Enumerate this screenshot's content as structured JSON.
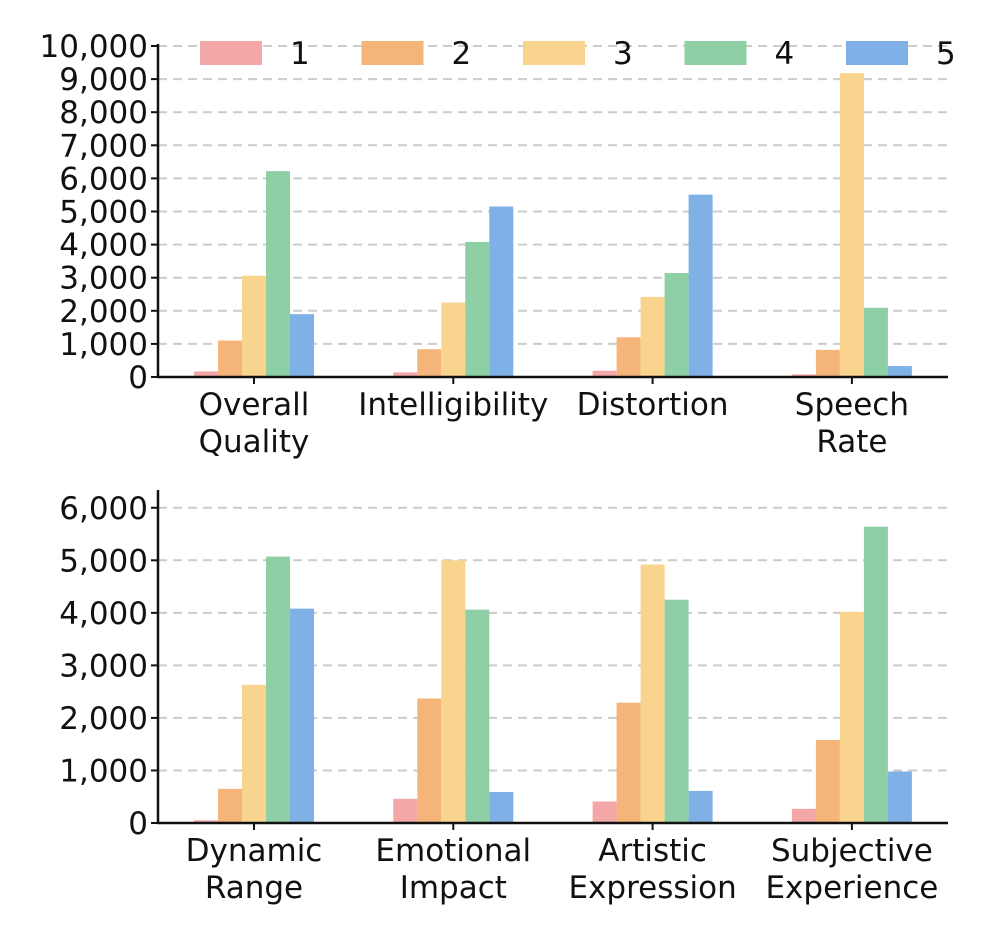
{
  "chart_data": [
    {
      "type": "bar",
      "title": "",
      "xlabel": "",
      "ylabel": "",
      "ylim": [
        0,
        10000
      ],
      "yticks": [
        0,
        1000,
        2000,
        3000,
        4000,
        5000,
        6000,
        7000,
        8000,
        9000,
        10000
      ],
      "ytick_labels": [
        "0",
        "1,000",
        "2,000",
        "3,000",
        "4,000",
        "5,000",
        "6,000",
        "7,000",
        "8,000",
        "9,000",
        "10,000"
      ],
      "categories": [
        [
          "Overall",
          "Quality"
        ],
        [
          "Intelligibility"
        ],
        [
          "Distortion"
        ],
        [
          "Speech",
          "Rate"
        ]
      ],
      "series": [
        {
          "name": "1",
          "values": [
            170,
            140,
            190,
            80
          ]
        },
        {
          "name": "2",
          "values": [
            1100,
            840,
            1200,
            820
          ]
        },
        {
          "name": "3",
          "values": [
            3060,
            2250,
            2420,
            9180
          ]
        },
        {
          "name": "4",
          "values": [
            6220,
            4080,
            3140,
            2090
          ]
        },
        {
          "name": "5",
          "values": [
            1900,
            5150,
            5510,
            330
          ]
        }
      ],
      "legend": "top",
      "grid": "y-dashed"
    },
    {
      "type": "bar",
      "title": "",
      "xlabel": "",
      "ylabel": "",
      "ylim": [
        0,
        6300
      ],
      "yticks": [
        0,
        1000,
        2000,
        3000,
        4000,
        5000,
        6000
      ],
      "ytick_labels": [
        "0",
        "1,000",
        "2,000",
        "3,000",
        "4,000",
        "5,000",
        "6,000"
      ],
      "categories": [
        [
          "Dynamic",
          "Range"
        ],
        [
          "Emotional",
          "Impact"
        ],
        [
          "Artistic",
          "Expression"
        ],
        [
          "Subjective",
          "Experience"
        ]
      ],
      "series": [
        {
          "name": "1",
          "values": [
            50,
            460,
            410,
            270
          ]
        },
        {
          "name": "2",
          "values": [
            650,
            2370,
            2290,
            1580
          ]
        },
        {
          "name": "3",
          "values": [
            2630,
            5000,
            4920,
            4020
          ]
        },
        {
          "name": "4",
          "values": [
            5070,
            4060,
            4250,
            5640
          ]
        },
        {
          "name": "5",
          "values": [
            4080,
            590,
            610,
            980
          ]
        }
      ],
      "legend": "none",
      "grid": "y-dashed"
    }
  ],
  "colors": {
    "series": [
      "#F4A7A7",
      "#F5B57A",
      "#F8D48E",
      "#8ECFA5",
      "#7FB0E6"
    ],
    "grid": "#cccccc",
    "axis": "#111111"
  }
}
